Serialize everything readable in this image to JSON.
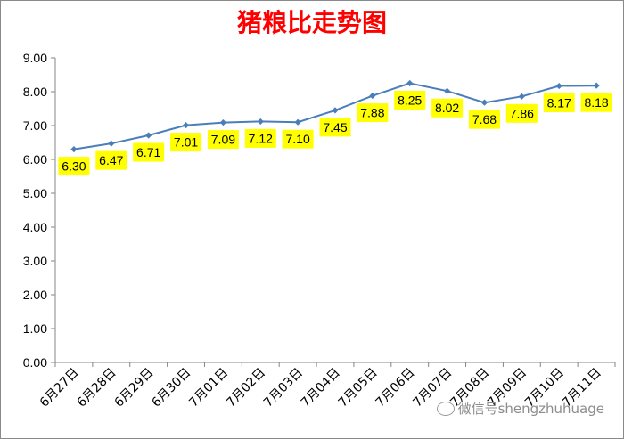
{
  "chart_data": {
    "type": "line",
    "title": "猪粮比走势图",
    "categories": [
      "6月27日",
      "6月28日",
      "6月29日",
      "6月30日",
      "7月01日",
      "7月02日",
      "7月03日",
      "7月04日",
      "7月05日",
      "7月06日",
      "7月07日",
      "7月08日",
      "7月09日",
      "7月10日",
      "7月11日"
    ],
    "series": [
      {
        "values": [
          6.3,
          6.47,
          6.71,
          7.01,
          7.09,
          7.12,
          7.1,
          7.45,
          7.88,
          8.25,
          8.02,
          7.68,
          7.86,
          8.17,
          8.18
        ]
      }
    ],
    "data_labels": [
      "6.30",
      "6.47",
      "6.71",
      "7.01",
      "7.09",
      "7.12",
      "7.10",
      "7.45",
      "7.88",
      "8.25",
      "8.02",
      "7.68",
      "7.86",
      "8.17",
      "8.18"
    ],
    "ylim": [
      0,
      9
    ],
    "yticks": [
      "0.00",
      "1.00",
      "2.00",
      "3.00",
      "4.00",
      "5.00",
      "6.00",
      "7.00",
      "8.00",
      "9.00"
    ],
    "grid": false,
    "legend": "none",
    "colors": {
      "title": "#ff0000",
      "line": "#4a7ebb",
      "label_bg": "#ffff00",
      "axis": "#868686"
    }
  },
  "watermark": {
    "text": "微信号shengzhuhuage",
    "icon": "wechat-icon"
  }
}
